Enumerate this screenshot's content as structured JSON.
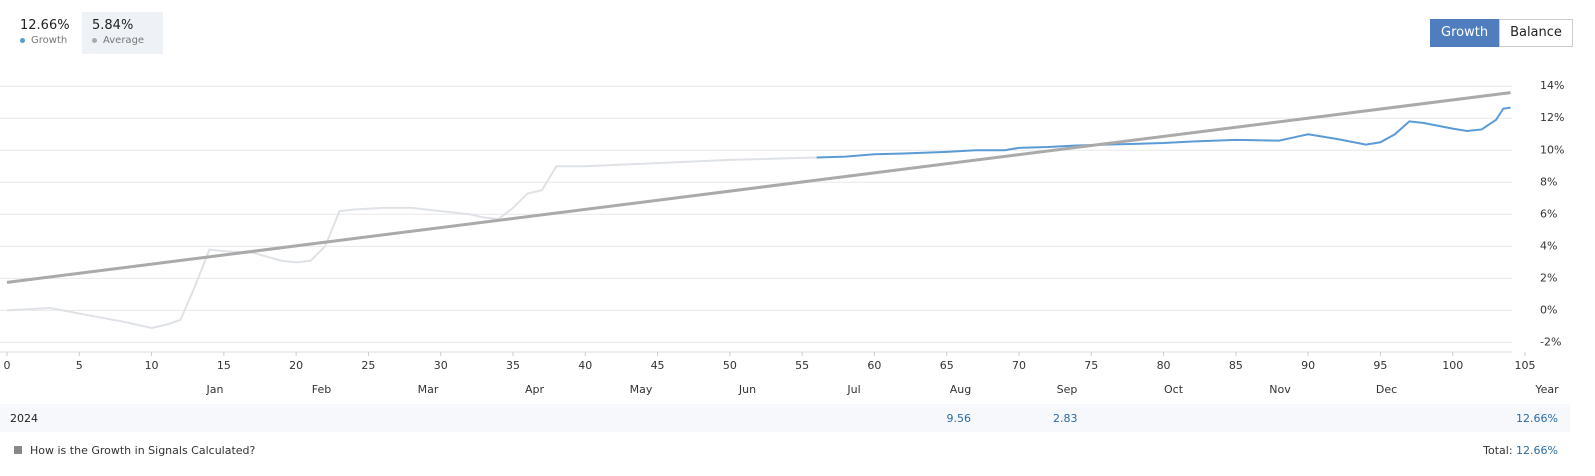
{
  "summary": {
    "growth": {
      "value": "12.66%",
      "label": "Growth"
    },
    "average": {
      "value": "5.84%",
      "label": "Average"
    }
  },
  "buttons": [
    "Growth",
    "Balance"
  ],
  "chart_data": {
    "type": "line",
    "xlim": [
      0,
      105
    ],
    "xticks": [
      0,
      5,
      10,
      15,
      20,
      25,
      30,
      35,
      40,
      45,
      50,
      55,
      60,
      65,
      70,
      75,
      80,
      85,
      90,
      95,
      100,
      105
    ],
    "ylim": [
      -2.6,
      14.7
    ],
    "yticks": [
      {
        "value": -2,
        "label": "-2%"
      },
      {
        "value": 0,
        "label": "0%"
      },
      {
        "value": 2,
        "label": "2%"
      },
      {
        "value": 4,
        "label": "4%"
      },
      {
        "value": 6,
        "label": "6%"
      },
      {
        "value": 8,
        "label": "8%"
      },
      {
        "value": 10,
        "label": "10%"
      },
      {
        "value": 12,
        "label": "12%"
      },
      {
        "value": 14,
        "label": "14%"
      }
    ],
    "grid": true,
    "series": [
      {
        "color": "#dfe2e7",
        "x": [
          0,
          2,
          3,
          5,
          8,
          10,
          11,
          12,
          13,
          14,
          15,
          17,
          19,
          20,
          21,
          22,
          23,
          24,
          26,
          28,
          30,
          32,
          33,
          34,
          35,
          36,
          37,
          38,
          40,
          45,
          50,
          56
        ],
        "values": [
          0,
          0.1,
          0.15,
          -0.2,
          -0.7,
          -1.1,
          -0.9,
          -0.6,
          1.5,
          3.8,
          3.7,
          3.6,
          3.1,
          3.0,
          3.1,
          4.0,
          6.2,
          6.3,
          6.4,
          6.4,
          6.2,
          6.0,
          5.8,
          5.7,
          6.4,
          7.3,
          7.5,
          9.0,
          9.0,
          9.2,
          9.4,
          9.55
        ]
      },
      {
        "name": "Growth",
        "color": "#5b9bd5",
        "x": [
          56,
          58,
          60,
          62,
          65,
          67,
          69,
          70,
          72,
          74,
          76,
          78,
          80,
          82,
          85,
          88,
          89,
          90,
          92,
          94,
          95,
          96,
          97,
          98,
          100,
          101,
          102,
          103,
          103.5,
          104
        ],
        "values": [
          9.55,
          9.6,
          9.75,
          9.8,
          9.9,
          10.0,
          10.0,
          10.15,
          10.2,
          10.3,
          10.35,
          10.4,
          10.45,
          10.55,
          10.65,
          10.6,
          10.8,
          11.0,
          10.7,
          10.35,
          10.5,
          11.0,
          11.8,
          11.7,
          11.35,
          11.2,
          11.3,
          11.9,
          12.6,
          12.66
        ]
      },
      {
        "name": "Average",
        "color": "#aaaaaa",
        "x": [
          0,
          104
        ],
        "values": [
          1.75,
          13.6
        ]
      }
    ],
    "months": [
      "Jan",
      "Feb",
      "Mar",
      "Apr",
      "May",
      "Jun",
      "Jul",
      "Aug",
      "Sep",
      "Oct",
      "Nov",
      "Dec"
    ],
    "year_label": "Year"
  },
  "table": {
    "year": "2024",
    "months": [
      null,
      null,
      null,
      null,
      null,
      null,
      null,
      9.56,
      2.83,
      null,
      null,
      null
    ],
    "total": "12.66%"
  },
  "footer": {
    "link": "How is the Growth in Signals Calculated?",
    "total_label": "Total:",
    "total_value": "12.66%"
  }
}
